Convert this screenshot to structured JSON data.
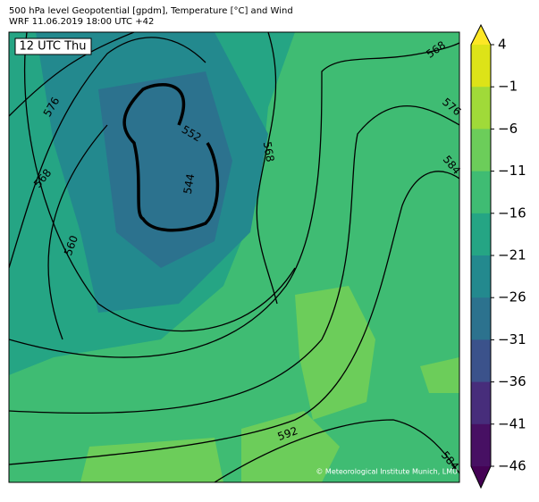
{
  "header": {
    "title": "500 hPa level Geopotential [gpdm], Temperature [°C] and Wind",
    "subtitle": "WRF 11.06.2019 18:00 UTC +42"
  },
  "map": {
    "time_label": "12 UTC Thu",
    "credit": "© Meteorological Institute Munich, LMU",
    "contour_labels": [
      568,
      576,
      552,
      544,
      568,
      560,
      568,
      576,
      584,
      592,
      584
    ]
  },
  "colorbar": {
    "ticks": [
      4,
      {
        "value": -1,
        "label": "−1"
      },
      {
        "value": -6,
        "label": "−6"
      },
      {
        "value": -11,
        "label": "−11"
      },
      {
        "value": -16,
        "label": "−16"
      },
      {
        "value": -21,
        "label": "−21"
      },
      {
        "value": -26,
        "label": "−26"
      },
      {
        "value": -31,
        "label": "−31"
      },
      {
        "value": -36,
        "label": "−36"
      },
      {
        "value": -41,
        "label": "−41"
      },
      {
        "value": -46,
        "label": "−46"
      }
    ],
    "colors": [
      "#dde318",
      "#a0da39",
      "#6ccd5a",
      "#3fbc73",
      "#25a584",
      "#23898e",
      "#2c728e",
      "#3b528b",
      "#472d7b",
      "#471063"
    ],
    "over_color": "#fde725",
    "under_color": "#440154"
  }
}
